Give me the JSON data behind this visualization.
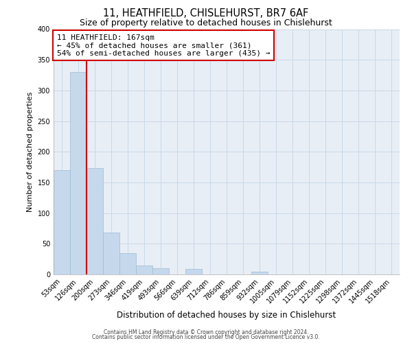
{
  "title1": "11, HEATHFIELD, CHISLEHURST, BR7 6AF",
  "title2": "Size of property relative to detached houses in Chislehurst",
  "xlabel": "Distribution of detached houses by size in Chislehurst",
  "ylabel": "Number of detached properties",
  "bar_labels": [
    "53sqm",
    "126sqm",
    "200sqm",
    "273sqm",
    "346sqm",
    "419sqm",
    "493sqm",
    "566sqm",
    "639sqm",
    "712sqm",
    "786sqm",
    "859sqm",
    "932sqm",
    "1005sqm",
    "1079sqm",
    "1152sqm",
    "1225sqm",
    "1298sqm",
    "1372sqm",
    "1445sqm",
    "1518sqm"
  ],
  "bar_heights": [
    170,
    330,
    173,
    68,
    35,
    14,
    10,
    0,
    9,
    0,
    0,
    0,
    4,
    0,
    0,
    0,
    0,
    0,
    0,
    0,
    0
  ],
  "bar_color": "#c5d8ec",
  "bar_edge_color": "#a0bcd4",
  "vline_color": "#cc0000",
  "vline_x": 1.5,
  "annotation_title": "11 HEATHFIELD: 167sqm",
  "annotation_line1": "← 45% of detached houses are smaller (361)",
  "annotation_line2": "54% of semi-detached houses are larger (435) →",
  "annotation_box_facecolor": "#ffffff",
  "annotation_box_edgecolor": "#cc0000",
  "ylim": [
    0,
    400
  ],
  "yticks": [
    0,
    50,
    100,
    150,
    200,
    250,
    300,
    350,
    400
  ],
  "footer1": "Contains HM Land Registry data © Crown copyright and database right 2024.",
  "footer2": "Contains public sector information licensed under the Open Government Licence v3.0.",
  "grid_color": "#c8d8e8",
  "bg_color": "#ffffff",
  "plot_bg_color": "#e8eef5"
}
